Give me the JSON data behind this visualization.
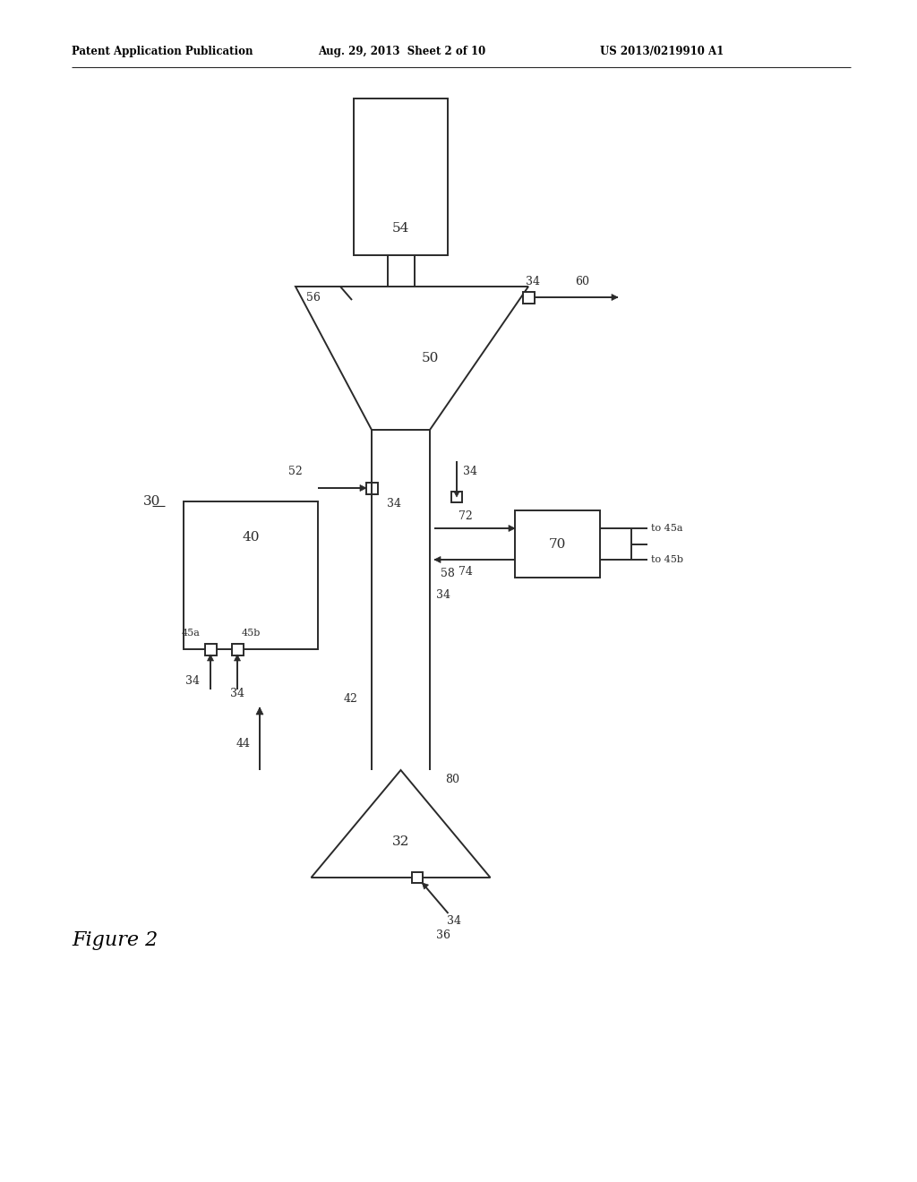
{
  "bg_color": "#ffffff",
  "line_color": "#2a2a2a",
  "header_left": "Patent Application Publication",
  "header_mid": "Aug. 29, 2013  Sheet 2 of 10",
  "header_right": "US 2013/0219910 A1",
  "figure_label": "Figure 2"
}
